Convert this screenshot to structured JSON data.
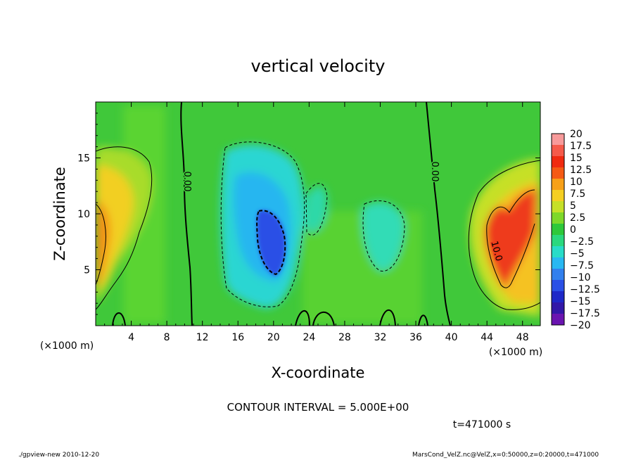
{
  "chart_data": {
    "type": "heatmap",
    "title": "vertical velocity",
    "xlabel": "X-coordinate",
    "ylabel": "Z-coordinate",
    "x_unit": "(×1000 m)",
    "y_unit": "(×1000 m)",
    "xlim": [
      0,
      50
    ],
    "ylim": [
      0,
      20
    ],
    "x_ticks": [
      4,
      8,
      12,
      16,
      20,
      24,
      28,
      32,
      36,
      40,
      44,
      48
    ],
    "y_ticks": [
      5,
      10,
      15
    ],
    "contour_interval": "CONTOUR INTERVAL = 5.000E+00",
    "time_label": "t=471000 s",
    "contour_labels": [
      "0.00",
      "0.00",
      "10.0"
    ],
    "colorbar": {
      "labels": [
        "20",
        "17.5",
        "15",
        "12.5",
        "10",
        "7.5",
        "5",
        "2.5",
        "0",
        "−2.5",
        "−5",
        "−7.5",
        "−10",
        "−12.5",
        "−15",
        "−17.5",
        "−20"
      ],
      "colors": [
        "#f79a9a",
        "#f55a4a",
        "#f02a10",
        "#f55a14",
        "#f7a018",
        "#f5cf22",
        "#c6e028",
        "#7ed82a",
        "#2ec83a",
        "#2ad87e",
        "#28dcc8",
        "#28b8f2",
        "#3280ee",
        "#2a50e6",
        "#1e28c8",
        "#3218a8",
        "#6a14b0"
      ]
    },
    "colors": {
      "background": "#40c83a",
      "positive_strong": "#ee3a1a",
      "positive": "#f5b422",
      "negative": "#28d0ee",
      "negative_strong": "#2a50e6"
    }
  },
  "footer": {
    "left": "./gpview-new   2010-12-20",
    "right": "MarsCond_VelZ.nc@VelZ,x=0:50000,z=0:20000,t=471000"
  }
}
